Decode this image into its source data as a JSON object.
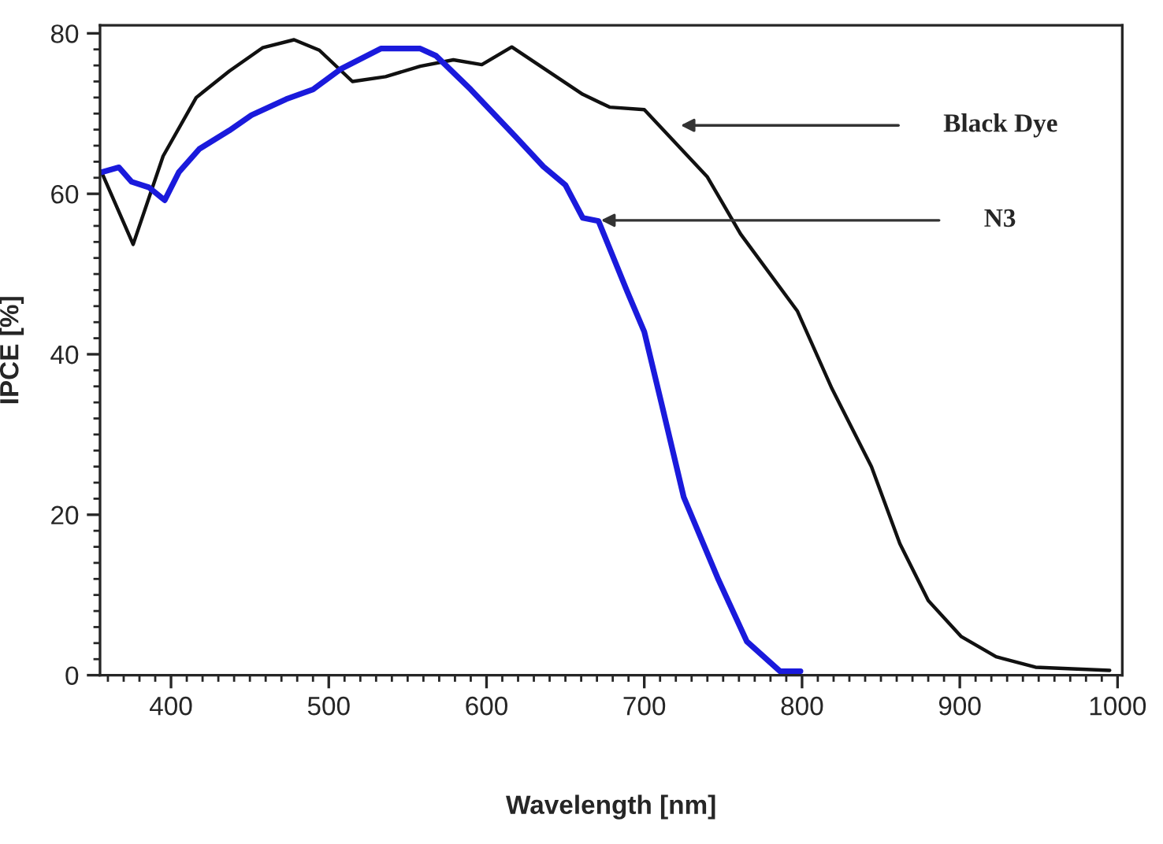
{
  "chart_data": {
    "type": "line",
    "xlabel": "Wavelength [nm]",
    "ylabel": "IPCE [%]",
    "xlim": [
      355,
      1003
    ],
    "ylim": [
      0,
      81
    ],
    "xticks": [
      400,
      500,
      600,
      700,
      800,
      900,
      1000
    ],
    "yticks": [
      0,
      20,
      40,
      60,
      80
    ],
    "grid": false,
    "legend": false,
    "marker": "none",
    "line_style": "solid",
    "series": [
      {
        "color": "#111111",
        "x": [
          356,
          376,
          395,
          416,
          437,
          458,
          478,
          494,
          515,
          536,
          558,
          579,
          597,
          616,
          661,
          678,
          700,
          740,
          761,
          797,
          819,
          844,
          862,
          880,
          901,
          923,
          948,
          995
        ],
        "values": [
          62.7,
          53.7,
          64.7,
          72,
          75.3,
          78.2,
          79.2,
          77.9,
          74,
          74.6,
          75.9,
          76.7,
          76.1,
          78.3,
          72.4,
          70.8,
          70.5,
          62.1,
          55,
          45.4,
          35.7,
          26,
          16.4,
          9.3,
          4.8,
          2.3,
          1,
          0.6
        ]
      },
      {
        "color": "#1a1adc",
        "x": [
          356,
          367,
          375,
          386,
          396,
          405,
          418,
          437,
          451,
          473,
          490,
          508,
          533,
          558,
          568,
          590,
          618,
          636,
          650,
          661,
          671,
          689,
          700,
          711,
          725,
          747,
          765,
          786,
          799
        ],
        "values": [
          62.7,
          63.3,
          61.5,
          60.8,
          59.2,
          62.7,
          65.6,
          67.9,
          69.8,
          71.8,
          73,
          75.6,
          78.1,
          78.1,
          77.2,
          73,
          67.2,
          63.4,
          61.1,
          57,
          56.6,
          47.9,
          42.8,
          33.8,
          22.2,
          11.9,
          4.2,
          0.5,
          0.5
        ]
      }
    ],
    "annotations": [
      "Black Dye",
      "N3"
    ]
  }
}
